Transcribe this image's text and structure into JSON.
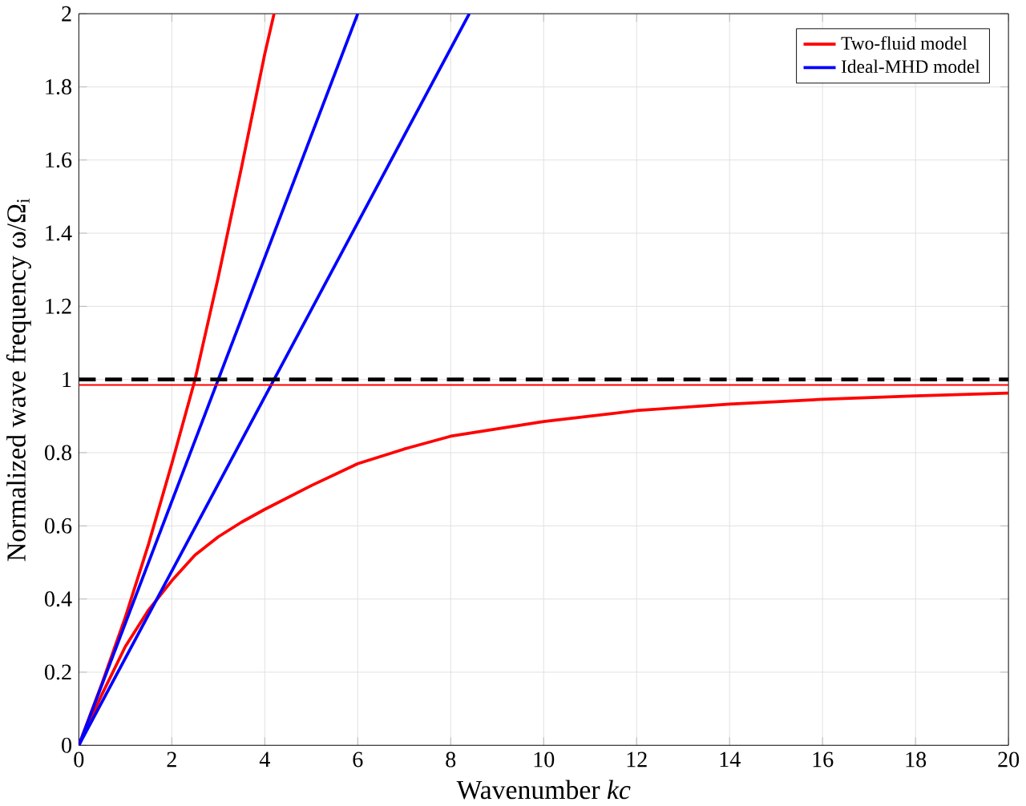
{
  "chart_data": {
    "type": "line",
    "xlabel": "Wavenumber *kc*",
    "ylabel": "Normalized wave frequency ω/Ω$_{i}$",
    "xlim": [
      0,
      20
    ],
    "ylim": [
      0,
      2
    ],
    "xticks": [
      0,
      2,
      4,
      6,
      8,
      10,
      12,
      14,
      16,
      18,
      20
    ],
    "yticks": [
      0,
      0.2,
      0.4,
      0.6,
      0.8,
      1,
      1.2,
      1.4,
      1.6,
      1.8,
      2
    ],
    "grid": true,
    "legend": "top right",
    "series": [
      {
        "name": "Two-fluid model",
        "color": "#ff0000",
        "x": [
          0,
          0.5,
          1,
          1.5,
          2,
          2.5,
          3,
          3.5,
          4,
          4.2
        ],
        "values": [
          0,
          0.17,
          0.35,
          0.55,
          0.77,
          1.0,
          1.28,
          1.58,
          1.89,
          2.0
        ]
      },
      {
        "color": "#ff0000",
        "x": [
          0,
          0.5,
          1,
          1.5,
          2,
          2.5,
          3,
          3.5,
          4,
          5,
          6,
          7,
          8,
          10,
          12,
          14,
          16,
          18,
          20
        ],
        "values": [
          0,
          0.14,
          0.27,
          0.37,
          0.45,
          0.52,
          0.57,
          0.61,
          0.645,
          0.71,
          0.77,
          0.81,
          0.845,
          0.885,
          0.915,
          0.933,
          0.946,
          0.955,
          0.963
        ]
      },
      {
        "name": "Ideal-MHD model",
        "color": "#0000ff",
        "x": [
          0,
          6
        ],
        "values": [
          0,
          2
        ]
      },
      {
        "color": "#0000ff",
        "x": [
          0,
          8.4
        ],
        "values": [
          0,
          2
        ]
      }
    ],
    "ref_lines": [
      {
        "axis": "y",
        "value": 0.985,
        "color": "#ff0000",
        "line_style": "solid"
      },
      {
        "axis": "y",
        "value": 1,
        "color": "#000000",
        "line_style": "dashed"
      }
    ]
  }
}
